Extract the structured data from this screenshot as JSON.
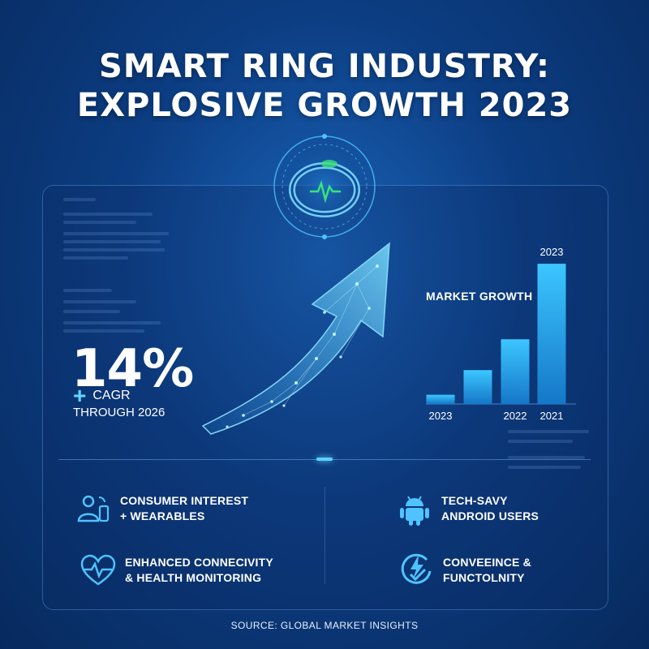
{
  "header": {
    "title_line1": "SMART RING INDUSTRY:",
    "title_line2": "EXPLOSIVE GROWTH 2023"
  },
  "stat": {
    "value": "14%",
    "plus_symbol": "+",
    "label": "CAGR",
    "sublabel": "THROUGH 2026"
  },
  "chart_data": {
    "type": "bar",
    "title": "MARKET GROWTH",
    "categories": [
      "2023",
      "",
      "2022",
      "2021"
    ],
    "top_label": "2023",
    "values": [
      12,
      44,
      84,
      182
    ],
    "ylim": [
      0,
      200
    ],
    "grid": false,
    "legend": "none",
    "bar_color": "#1fa8ee"
  },
  "features": [
    {
      "icon": "user-devices-icon",
      "line1": "CONSUMER INTEREST",
      "line2": "+ WEARABLES"
    },
    {
      "icon": "android-icon",
      "line1": "TECH-SAVY",
      "line2": "ANDROID USERS"
    },
    {
      "icon": "heart-pulse-icon",
      "line1": "ENHANCED CONNECIVITY",
      "line2": "& HEALTH MONITORING"
    },
    {
      "icon": "lightning-check-icon",
      "line1": "CONVEEINCE &",
      "line2": "FUNCTOLNITY"
    }
  ],
  "footer": {
    "source": "SOURCE: GLOBAL MARKET INSIGHTS"
  },
  "colors": {
    "accent": "#4fc3ff",
    "pulse": "#39e27a",
    "background": "#0c3d82"
  }
}
